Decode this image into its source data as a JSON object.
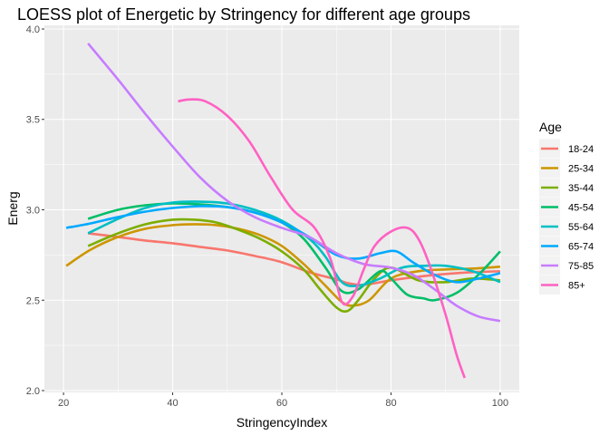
{
  "chart_data": {
    "type": "line",
    "title": "LOESS plot of Energetic by Stringency for different age groups",
    "xlabel": "StringencyIndex",
    "ylabel": "Energ",
    "xlim": [
      16.5,
      103.5
    ],
    "ylim": [
      1.99,
      4.02
    ],
    "xticks": [
      20,
      40,
      60,
      80,
      100
    ],
    "xtick_labels": [
      "20",
      "40",
      "60",
      "80",
      "100"
    ],
    "yticks": [
      2.0,
      2.5,
      3.0,
      3.5,
      4.0
    ],
    "ytick_labels": [
      "2.0",
      "2.5",
      "3.0",
      "3.5",
      "4.0"
    ],
    "grid": true,
    "legend_title": "Age",
    "legend_position": "right",
    "series": [
      {
        "name": "18-24",
        "color": "#F8766D",
        "x": [
          24.5,
          30,
          35,
          40,
          45,
          50,
          55,
          60,
          65,
          70,
          72,
          75,
          80,
          85,
          90,
          95,
          100
        ],
        "y": [
          2.87,
          2.85,
          2.83,
          2.815,
          2.795,
          2.775,
          2.745,
          2.71,
          2.655,
          2.615,
          2.595,
          2.585,
          2.61,
          2.63,
          2.645,
          2.655,
          2.66
        ]
      },
      {
        "name": "25-34",
        "color": "#CD9600",
        "x": [
          20.5,
          25,
          30,
          35,
          40,
          44,
          48,
          52,
          56,
          60,
          64,
          68,
          71,
          73,
          76,
          80,
          85,
          90,
          95,
          100
        ],
        "y": [
          2.69,
          2.78,
          2.85,
          2.895,
          2.915,
          2.92,
          2.915,
          2.895,
          2.86,
          2.8,
          2.7,
          2.58,
          2.49,
          2.47,
          2.5,
          2.62,
          2.66,
          2.67,
          2.675,
          2.685
        ]
      },
      {
        "name": "35-44",
        "color": "#7CAE00",
        "x": [
          24.5,
          30,
          35,
          40,
          44,
          48,
          52,
          56,
          60,
          64,
          67,
          70,
          72,
          74,
          77,
          80,
          85,
          90,
          95,
          100
        ],
        "y": [
          2.8,
          2.87,
          2.92,
          2.945,
          2.945,
          2.93,
          2.89,
          2.84,
          2.77,
          2.67,
          2.56,
          2.46,
          2.44,
          2.5,
          2.62,
          2.68,
          2.61,
          2.6,
          2.62,
          2.61
        ]
      },
      {
        "name": "45-54",
        "color": "#00BE67",
        "x": [
          24.5,
          30,
          35,
          40,
          45,
          50,
          55,
          60,
          64,
          68,
          71,
          74,
          78,
          80,
          83,
          86,
          88,
          92,
          96,
          100
        ],
        "y": [
          2.95,
          3.0,
          3.025,
          3.035,
          3.03,
          3.015,
          2.985,
          2.93,
          2.84,
          2.68,
          2.55,
          2.56,
          2.66,
          2.62,
          2.53,
          2.51,
          2.5,
          2.54,
          2.64,
          2.77
        ]
      },
      {
        "name": "55-64",
        "color": "#00BFC4",
        "x": [
          24.5,
          30,
          35,
          40,
          45,
          50,
          55,
          60,
          65,
          68,
          71,
          74,
          78,
          82,
          86,
          90,
          95,
          100
        ],
        "y": [
          2.87,
          2.95,
          3.01,
          3.04,
          3.045,
          3.035,
          3.0,
          2.94,
          2.84,
          2.74,
          2.6,
          2.58,
          2.62,
          2.68,
          2.69,
          2.69,
          2.66,
          2.6
        ]
      },
      {
        "name": "65-74",
        "color": "#00A9FF",
        "x": [
          20.5,
          25,
          30,
          35,
          40,
          45,
          50,
          55,
          60,
          65,
          70,
          74,
          78,
          81,
          84,
          88,
          92,
          96,
          100
        ],
        "y": [
          2.9,
          2.925,
          2.96,
          2.99,
          3.01,
          3.02,
          3.015,
          2.985,
          2.93,
          2.85,
          2.75,
          2.73,
          2.76,
          2.77,
          2.71,
          2.64,
          2.6,
          2.62,
          2.65
        ]
      },
      {
        "name": "75-85",
        "color": "#C77CFF",
        "x": [
          24.5,
          30,
          35,
          40,
          45,
          50,
          55,
          60,
          65,
          70,
          75,
          80,
          84,
          88,
          92,
          96,
          100
        ],
        "y": [
          3.92,
          3.72,
          3.53,
          3.35,
          3.18,
          3.05,
          2.96,
          2.9,
          2.85,
          2.76,
          2.7,
          2.68,
          2.64,
          2.56,
          2.47,
          2.41,
          2.385
        ]
      },
      {
        "name": "85+",
        "color": "#FF61C3",
        "x": [
          41,
          43,
          46,
          50,
          54,
          58,
          62,
          66,
          69,
          71,
          73,
          75,
          77,
          80,
          83,
          85,
          87,
          90,
          92,
          93.5
        ],
        "y": [
          3.6,
          3.61,
          3.6,
          3.52,
          3.38,
          3.18,
          3.0,
          2.9,
          2.72,
          2.49,
          2.52,
          2.67,
          2.8,
          2.88,
          2.9,
          2.84,
          2.7,
          2.42,
          2.2,
          2.07
        ]
      }
    ]
  }
}
